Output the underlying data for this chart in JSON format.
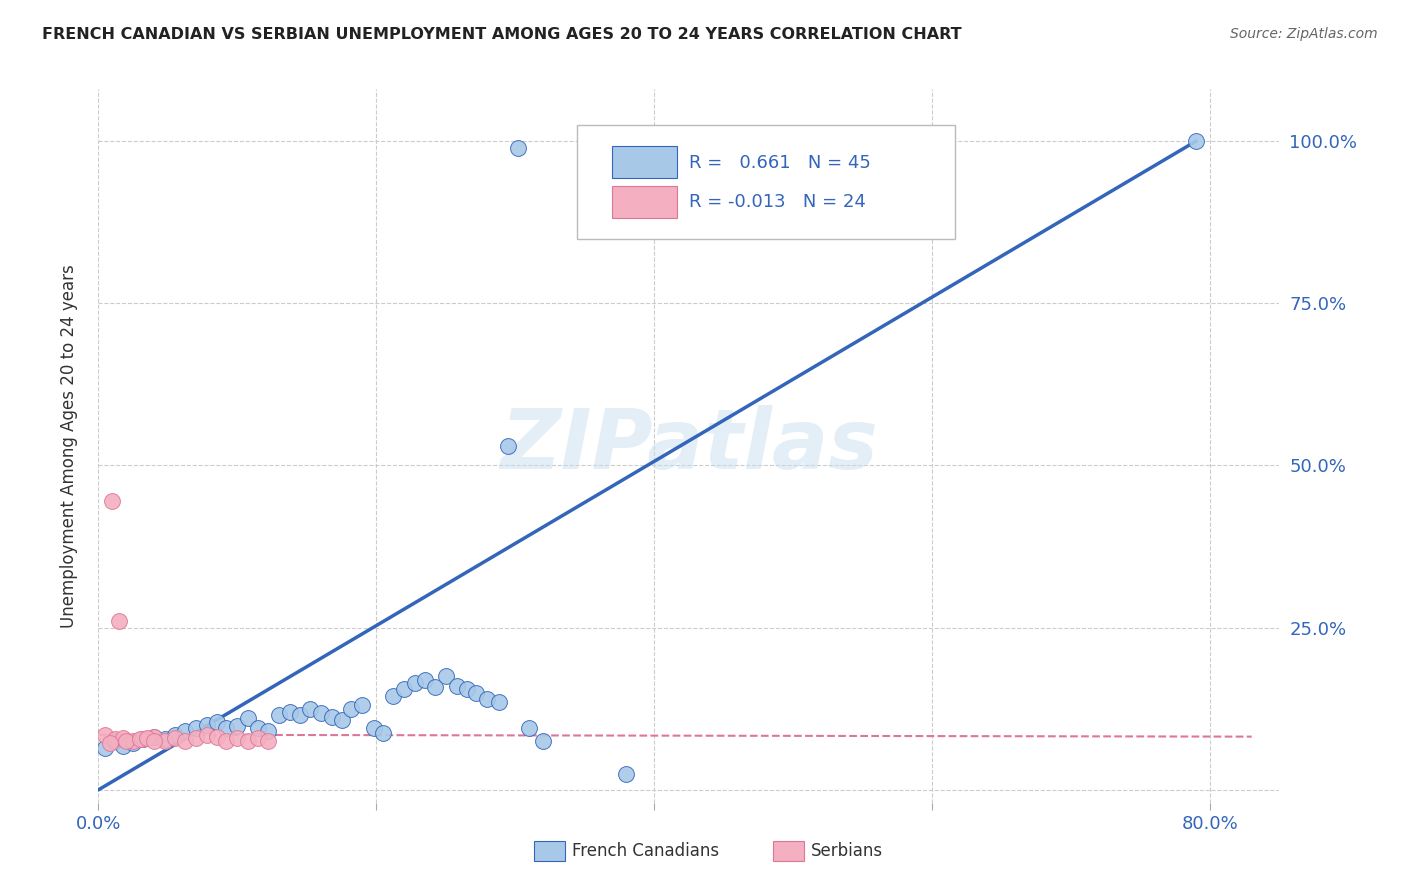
{
  "title": "FRENCH CANADIAN VS SERBIAN UNEMPLOYMENT AMONG AGES 20 TO 24 YEARS CORRELATION CHART",
  "source": "Source: ZipAtlas.com",
  "ylabel": "Unemployment Among Ages 20 to 24 years",
  "xlim": [
    0.0,
    0.85
  ],
  "ylim": [
    -0.02,
    1.08
  ],
  "x_ticks": [
    0.0,
    0.2,
    0.4,
    0.6,
    0.8
  ],
  "x_tick_labels": [
    "0.0%",
    "",
    "",
    "",
    "80.0%"
  ],
  "y_ticks": [
    0.0,
    0.25,
    0.5,
    0.75,
    1.0
  ],
  "y_tick_labels_right": [
    "",
    "25.0%",
    "50.0%",
    "75.0%",
    "100.0%"
  ],
  "watermark": "ZIPatlas",
  "blue_color": "#a8c8e8",
  "pink_color": "#f4afc0",
  "blue_line_color": "#3366bb",
  "pink_line_color": "#dd7799",
  "legend_r_blue": "0.661",
  "legend_n_blue": "45",
  "legend_r_pink": "-0.013",
  "legend_n_pink": "24",
  "blue_scatter_x": [
    0.295,
    0.302,
    0.005,
    0.012,
    0.018,
    0.025,
    0.032,
    0.04,
    0.048,
    0.055,
    0.062,
    0.07,
    0.078,
    0.085,
    0.092,
    0.1,
    0.108,
    0.115,
    0.122,
    0.13,
    0.138,
    0.145,
    0.152,
    0.16,
    0.168,
    0.175,
    0.182,
    0.19,
    0.198,
    0.205,
    0.212,
    0.22,
    0.228,
    0.235,
    0.242,
    0.25,
    0.258,
    0.265,
    0.272,
    0.28,
    0.288,
    0.31,
    0.32,
    0.38,
    0.79
  ],
  "blue_scatter_y": [
    0.53,
    0.99,
    0.065,
    0.075,
    0.068,
    0.072,
    0.078,
    0.082,
    0.078,
    0.085,
    0.09,
    0.095,
    0.1,
    0.105,
    0.095,
    0.098,
    0.11,
    0.095,
    0.09,
    0.115,
    0.12,
    0.115,
    0.125,
    0.118,
    0.112,
    0.108,
    0.125,
    0.13,
    0.095,
    0.088,
    0.145,
    0.155,
    0.165,
    0.17,
    0.158,
    0.175,
    0.16,
    0.155,
    0.15,
    0.14,
    0.135,
    0.095,
    0.075,
    0.025,
    1.0
  ],
  "pink_scatter_x": [
    0.005,
    0.012,
    0.018,
    0.025,
    0.032,
    0.04,
    0.048,
    0.055,
    0.062,
    0.07,
    0.078,
    0.085,
    0.092,
    0.1,
    0.108,
    0.115,
    0.122,
    0.01,
    0.015,
    0.008,
    0.02,
    0.03,
    0.035,
    0.04
  ],
  "pink_scatter_y": [
    0.085,
    0.078,
    0.08,
    0.075,
    0.078,
    0.082,
    0.075,
    0.08,
    0.075,
    0.08,
    0.085,
    0.082,
    0.075,
    0.08,
    0.075,
    0.08,
    0.075,
    0.445,
    0.26,
    0.072,
    0.075,
    0.078,
    0.08,
    0.075
  ],
  "blue_line_x": [
    0.0,
    0.79
  ],
  "blue_line_y": [
    0.0,
    1.0
  ],
  "pink_line_x": [
    0.0,
    0.83
  ],
  "pink_line_y": [
    0.085,
    0.082
  ],
  "background_color": "#ffffff",
  "grid_color": "#cccccc"
}
